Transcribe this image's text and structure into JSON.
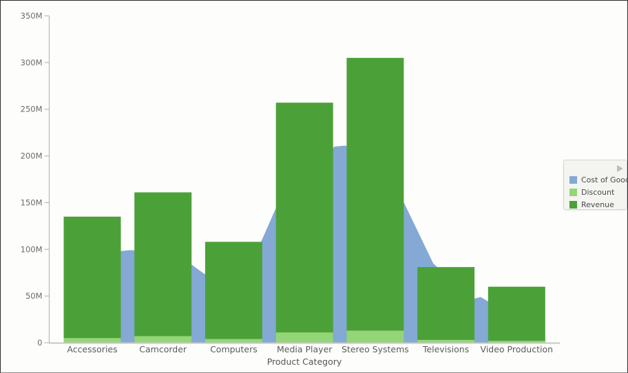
{
  "chart_data": {
    "type": "combo",
    "subtype": "area-behind-bars",
    "title": "",
    "xlabel": "Product Category",
    "ylabel": "",
    "units": "M (millions)",
    "ylim": [
      0,
      350
    ],
    "y_tick_values": [
      0,
      50,
      100,
      150,
      200,
      250,
      300,
      350
    ],
    "y_tick_labels": [
      "0",
      "50M",
      "100M",
      "150M",
      "200M",
      "250M",
      "300M",
      "350M"
    ],
    "grid": "off",
    "categories": [
      "Accessories",
      "Camcorder",
      "Computers",
      "Media Player",
      "Stereo Systems",
      "Televisions",
      "Video Production"
    ],
    "series": [
      {
        "name": "Cost of Goods",
        "type": "area",
        "color": "#83a9d4",
        "values": [
          97,
          94,
          71,
          181,
          193,
          70,
          22
        ],
        "area_profile": [
          [
            0.0,
            97
          ],
          [
            0.39,
            98
          ],
          [
            0.52,
            99
          ],
          [
            0.65,
            99
          ],
          [
            1.04,
            94
          ],
          [
            1.36,
            86
          ],
          [
            1.58,
            74
          ],
          [
            1.82,
            67
          ],
          [
            2.06,
            72
          ],
          [
            2.38,
            107
          ],
          [
            2.59,
            143
          ],
          [
            2.89,
            173
          ],
          [
            3.18,
            198
          ],
          [
            3.43,
            210
          ],
          [
            3.57,
            211
          ],
          [
            3.72,
            209
          ],
          [
            3.99,
            193
          ],
          [
            4.21,
            173
          ],
          [
            4.4,
            151
          ],
          [
            4.82,
            85
          ],
          [
            5.03,
            70
          ],
          [
            5.23,
            57
          ],
          [
            5.39,
            47
          ],
          [
            5.49,
            49
          ],
          [
            5.6,
            44
          ],
          [
            5.81,
            33
          ],
          [
            6.0,
            22
          ],
          [
            6.2,
            10
          ],
          [
            6.4,
            1
          ]
        ]
      },
      {
        "name": "Discount",
        "type": "bar",
        "color": "#94d677",
        "values": [
          5,
          7,
          4,
          11,
          13,
          3,
          2
        ]
      },
      {
        "name": "Revenue",
        "type": "bar",
        "color": "#4ba138",
        "values": [
          135,
          161,
          108,
          257,
          305,
          81,
          60
        ]
      }
    ],
    "legend": {
      "position": "right",
      "items": [
        "Cost of Goods",
        "Discount",
        "Revenue"
      ]
    }
  }
}
